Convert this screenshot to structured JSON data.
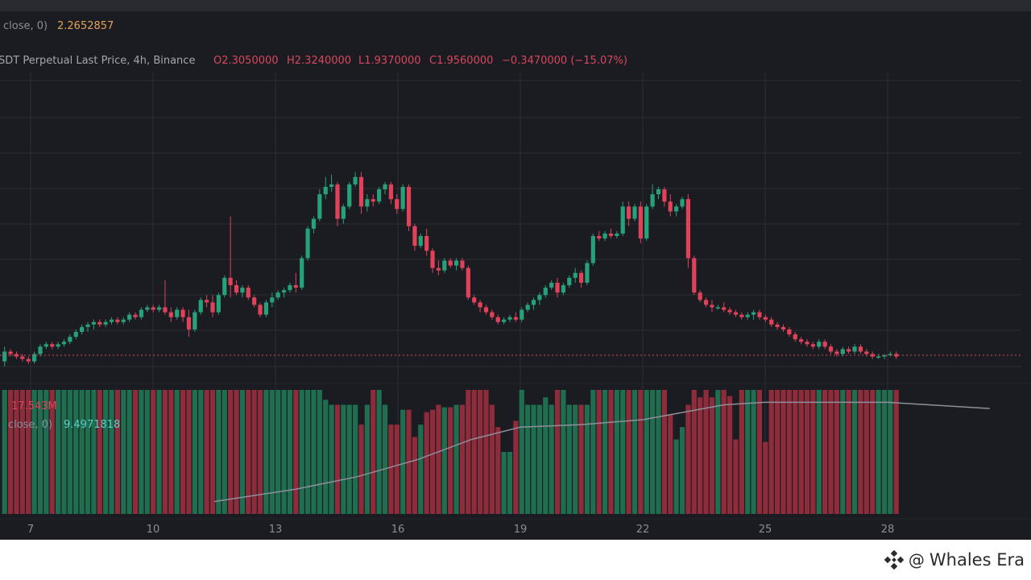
{
  "chart_data": [
    {
      "type": "candlestick",
      "ohlc_legend": {
        "symbol": "SDT Perpetual Last Price, 4h, Binance",
        "open": "O2.3050000",
        "high": "H2.3240000",
        "low": "L1.9370000",
        "close": "C1.9560000",
        "change": "−0.3470000 (−15.07%)"
      },
      "indicator_legend": {
        "label": "close, 0)",
        "value": "2.2652857"
      },
      "x_tick_labels": [
        "7",
        "10",
        "13",
        "16",
        "19",
        "22",
        "25",
        "28"
      ],
      "y_range": [
        1.85,
        3.2
      ],
      "candles": [
        [
          1.92,
          1.98,
          1.9,
          1.96
        ],
        [
          1.96,
          1.97,
          1.94,
          1.95
        ],
        [
          1.95,
          1.96,
          1.93,
          1.94
        ],
        [
          1.94,
          1.95,
          1.92,
          1.93
        ],
        [
          1.93,
          1.94,
          1.91,
          1.92
        ],
        [
          1.92,
          1.96,
          1.91,
          1.95
        ],
        [
          1.95,
          1.99,
          1.94,
          1.98
        ],
        [
          1.98,
          2.0,
          1.97,
          1.99
        ],
        [
          1.99,
          2.0,
          1.97,
          1.98
        ],
        [
          1.98,
          2.0,
          1.97,
          1.99
        ],
        [
          1.99,
          2.01,
          1.98,
          2.0
        ],
        [
          2.0,
          2.03,
          1.99,
          2.02
        ],
        [
          2.02,
          2.05,
          2.01,
          2.04
        ],
        [
          2.04,
          2.07,
          2.03,
          2.06
        ],
        [
          2.06,
          2.08,
          2.04,
          2.07
        ],
        [
          2.07,
          2.09,
          2.05,
          2.08
        ],
        [
          2.08,
          2.09,
          2.06,
          2.07
        ],
        [
          2.07,
          2.09,
          2.06,
          2.08
        ],
        [
          2.08,
          2.1,
          2.07,
          2.09
        ],
        [
          2.09,
          2.1,
          2.07,
          2.08
        ],
        [
          2.08,
          2.1,
          2.07,
          2.09
        ],
        [
          2.09,
          2.12,
          2.08,
          2.11
        ],
        [
          2.11,
          2.12,
          2.09,
          2.1
        ],
        [
          2.1,
          2.14,
          2.09,
          2.13
        ],
        [
          2.13,
          2.15,
          2.12,
          2.14
        ],
        [
          2.14,
          2.15,
          2.12,
          2.13
        ],
        [
          2.13,
          2.15,
          2.12,
          2.14
        ],
        [
          2.14,
          2.25,
          2.11,
          2.12
        ],
        [
          2.12,
          2.14,
          2.08,
          2.1
        ],
        [
          2.1,
          2.14,
          2.09,
          2.13
        ],
        [
          2.13,
          2.14,
          2.08,
          2.1
        ],
        [
          2.1,
          2.13,
          2.02,
          2.05
        ],
        [
          2.05,
          2.13,
          2.04,
          2.12
        ],
        [
          2.12,
          2.18,
          2.11,
          2.17
        ],
        [
          2.17,
          2.19,
          2.14,
          2.16
        ],
        [
          2.16,
          2.19,
          2.1,
          2.12
        ],
        [
          2.12,
          2.2,
          2.11,
          2.19
        ],
        [
          2.19,
          2.27,
          2.18,
          2.26
        ],
        [
          2.26,
          2.51,
          2.18,
          2.23
        ],
        [
          2.23,
          2.25,
          2.19,
          2.2
        ],
        [
          2.2,
          2.23,
          2.18,
          2.22
        ],
        [
          2.22,
          2.23,
          2.17,
          2.18
        ],
        [
          2.18,
          2.19,
          2.14,
          2.15
        ],
        [
          2.15,
          2.16,
          2.1,
          2.11
        ],
        [
          2.11,
          2.17,
          2.1,
          2.16
        ],
        [
          2.16,
          2.2,
          2.14,
          2.18
        ],
        [
          2.18,
          2.21,
          2.17,
          2.2
        ],
        [
          2.2,
          2.22,
          2.18,
          2.21
        ],
        [
          2.21,
          2.24,
          2.2,
          2.23
        ],
        [
          2.23,
          2.28,
          2.2,
          2.22
        ],
        [
          2.22,
          2.35,
          2.21,
          2.34
        ],
        [
          2.34,
          2.47,
          2.33,
          2.46
        ],
        [
          2.46,
          2.51,
          2.44,
          2.5
        ],
        [
          2.5,
          2.62,
          2.49,
          2.6
        ],
        [
          2.6,
          2.67,
          2.58,
          2.63
        ],
        [
          2.63,
          2.68,
          2.61,
          2.64
        ],
        [
          2.64,
          2.65,
          2.47,
          2.5
        ],
        [
          2.5,
          2.56,
          2.48,
          2.55
        ],
        [
          2.55,
          2.65,
          2.54,
          2.64
        ],
        [
          2.64,
          2.69,
          2.63,
          2.67
        ],
        [
          2.67,
          2.69,
          2.52,
          2.55
        ],
        [
          2.55,
          2.6,
          2.53,
          2.58
        ],
        [
          2.58,
          2.6,
          2.55,
          2.57
        ],
        [
          2.57,
          2.63,
          2.56,
          2.62
        ],
        [
          2.62,
          2.65,
          2.6,
          2.64
        ],
        [
          2.64,
          2.65,
          2.56,
          2.58
        ],
        [
          2.58,
          2.6,
          2.52,
          2.54
        ],
        [
          2.54,
          2.64,
          2.53,
          2.63
        ],
        [
          2.63,
          2.64,
          2.45,
          2.47
        ],
        [
          2.47,
          2.48,
          2.37,
          2.39
        ],
        [
          2.39,
          2.44,
          2.38,
          2.43
        ],
        [
          2.43,
          2.46,
          2.35,
          2.37
        ],
        [
          2.37,
          2.38,
          2.28,
          2.3
        ],
        [
          2.3,
          2.33,
          2.27,
          2.29
        ],
        [
          2.29,
          2.34,
          2.28,
          2.33
        ],
        [
          2.33,
          2.34,
          2.3,
          2.31
        ],
        [
          2.31,
          2.34,
          2.29,
          2.33
        ],
        [
          2.33,
          2.34,
          2.29,
          2.3
        ],
        [
          2.3,
          2.31,
          2.17,
          2.18
        ],
        [
          2.18,
          2.19,
          2.15,
          2.16
        ],
        [
          2.16,
          2.17,
          2.12,
          2.14
        ],
        [
          2.14,
          2.15,
          2.11,
          2.12
        ],
        [
          2.12,
          2.13,
          2.09,
          2.1
        ],
        [
          2.1,
          2.11,
          2.07,
          2.08
        ],
        [
          2.08,
          2.1,
          2.07,
          2.09
        ],
        [
          2.09,
          2.11,
          2.08,
          2.1
        ],
        [
          2.1,
          2.12,
          2.08,
          2.09
        ],
        [
          2.09,
          2.14,
          2.08,
          2.13
        ],
        [
          2.13,
          2.16,
          2.12,
          2.15
        ],
        [
          2.15,
          2.18,
          2.13,
          2.17
        ],
        [
          2.17,
          2.2,
          2.15,
          2.19
        ],
        [
          2.19,
          2.23,
          2.18,
          2.22
        ],
        [
          2.22,
          2.25,
          2.21,
          2.24
        ],
        [
          2.24,
          2.26,
          2.18,
          2.2
        ],
        [
          2.2,
          2.24,
          2.19,
          2.23
        ],
        [
          2.23,
          2.27,
          2.22,
          2.26
        ],
        [
          2.26,
          2.3,
          2.24,
          2.28
        ],
        [
          2.28,
          2.29,
          2.22,
          2.24
        ],
        [
          2.24,
          2.33,
          2.23,
          2.32
        ],
        [
          2.32,
          2.44,
          2.31,
          2.43
        ],
        [
          2.43,
          2.45,
          2.41,
          2.42
        ],
        [
          2.42,
          2.45,
          2.41,
          2.44
        ],
        [
          2.44,
          2.46,
          2.42,
          2.43
        ],
        [
          2.43,
          2.45,
          2.42,
          2.44
        ],
        [
          2.44,
          2.57,
          2.43,
          2.55
        ],
        [
          2.55,
          2.57,
          2.47,
          2.5
        ],
        [
          2.5,
          2.56,
          2.49,
          2.55
        ],
        [
          2.55,
          2.57,
          2.4,
          2.42
        ],
        [
          2.42,
          2.56,
          2.41,
          2.55
        ],
        [
          2.55,
          2.64,
          2.54,
          2.6
        ],
        [
          2.6,
          2.63,
          2.58,
          2.62
        ],
        [
          2.62,
          2.63,
          2.55,
          2.57
        ],
        [
          2.57,
          2.6,
          2.51,
          2.53
        ],
        [
          2.53,
          2.56,
          2.51,
          2.55
        ],
        [
          2.55,
          2.59,
          2.54,
          2.58
        ],
        [
          2.58,
          2.6,
          2.3,
          2.34
        ],
        [
          2.34,
          2.35,
          2.19,
          2.2
        ],
        [
          2.2,
          2.21,
          2.16,
          2.17
        ],
        [
          2.17,
          2.18,
          2.14,
          2.15
        ],
        [
          2.15,
          2.17,
          2.12,
          2.14
        ],
        [
          2.14,
          2.15,
          2.13,
          2.14
        ],
        [
          2.14,
          2.16,
          2.12,
          2.13
        ],
        [
          2.13,
          2.14,
          2.11,
          2.12
        ],
        [
          2.12,
          2.13,
          2.1,
          2.11
        ],
        [
          2.11,
          2.12,
          2.09,
          2.1
        ],
        [
          2.1,
          2.12,
          2.09,
          2.11
        ],
        [
          2.11,
          2.13,
          2.09,
          2.12
        ],
        [
          2.12,
          2.13,
          2.09,
          2.1
        ],
        [
          2.1,
          2.11,
          2.08,
          2.09
        ],
        [
          2.09,
          2.1,
          2.06,
          2.07
        ],
        [
          2.07,
          2.08,
          2.05,
          2.06
        ],
        [
          2.06,
          2.07,
          2.04,
          2.05
        ],
        [
          2.05,
          2.06,
          2.02,
          2.03
        ],
        [
          2.03,
          2.04,
          2.0,
          2.01
        ],
        [
          2.01,
          2.02,
          1.99,
          2.0
        ],
        [
          2.0,
          2.01,
          1.98,
          1.99
        ],
        [
          1.99,
          2.0,
          1.97,
          1.98
        ],
        [
          1.98,
          2.01,
          1.97,
          2.0
        ],
        [
          2.0,
          2.01,
          1.97,
          1.98
        ],
        [
          1.98,
          1.99,
          1.95,
          1.96
        ],
        [
          1.96,
          1.97,
          1.94,
          1.95
        ],
        [
          1.95,
          1.98,
          1.94,
          1.97
        ],
        [
          1.97,
          1.98,
          1.95,
          1.96
        ],
        [
          1.96,
          1.99,
          1.95,
          1.98
        ],
        [
          1.98,
          1.99,
          1.95,
          1.96
        ],
        [
          1.96,
          1.97,
          1.94,
          1.95
        ],
        [
          1.95,
          1.96,
          1.93,
          1.94
        ],
        [
          1.94,
          1.95,
          1.93,
          1.94
        ],
        [
          1.94,
          1.95,
          1.93,
          1.945
        ],
        [
          1.945,
          1.96,
          1.94,
          1.95
        ],
        [
          1.95,
          1.96,
          1.93,
          1.94
        ]
      ],
      "last_price": 1.945
    },
    {
      "type": "bar",
      "panel": "volume",
      "legend_volume_value": "17.543M",
      "legend_ma_label": "close, 0)",
      "legend_ma_value": "9.4971818",
      "y_range": [
        0,
        100
      ],
      "volume_pattern": [
        100,
        100,
        100,
        100,
        100,
        100,
        100,
        100,
        100,
        100,
        100,
        100,
        100,
        100,
        100,
        100,
        100,
        100,
        100,
        100,
        100,
        100,
        100,
        100,
        100,
        100,
        100,
        100,
        100,
        100,
        100,
        100,
        100,
        100,
        100,
        100,
        100,
        100,
        100,
        100,
        100,
        100,
        100,
        100,
        100,
        100,
        100,
        100,
        100,
        100,
        100,
        100,
        100,
        100,
        92,
        88,
        88,
        88,
        88,
        88,
        72,
        88,
        100,
        100,
        88,
        72,
        72,
        84,
        84,
        62,
        72,
        82,
        84,
        88,
        86,
        86,
        88,
        88,
        100,
        100,
        100,
        100,
        88,
        70,
        50,
        50,
        75,
        100,
        88,
        88,
        88,
        94,
        88,
        100,
        100,
        88,
        88,
        88,
        88,
        100,
        100,
        100,
        100,
        100,
        100,
        100,
        100,
        100,
        100,
        100,
        100,
        100,
        80,
        60,
        70,
        88,
        100,
        94,
        100,
        94,
        100,
        100,
        95,
        60,
        100,
        100,
        100,
        100,
        58,
        100,
        100,
        100,
        100,
        100,
        100,
        100,
        100,
        100,
        100,
        100,
        100,
        100,
        100,
        100,
        100,
        100,
        100,
        100,
        100,
        100,
        100,
        100,
        100,
        100,
        100,
        100,
        100,
        100,
        100,
        100,
        100
      ],
      "ma_line": [
        [
          11.5,
          10
        ],
        [
          13.5,
          20
        ],
        [
          15,
          30
        ],
        [
          16.5,
          44
        ],
        [
          17.8,
          60
        ],
        [
          19,
          70
        ],
        [
          20.5,
          72
        ],
        [
          22,
          76
        ],
        [
          23,
          82
        ],
        [
          24,
          88
        ],
        [
          25,
          90
        ],
        [
          26,
          90
        ],
        [
          27,
          90
        ],
        [
          28,
          90
        ],
        [
          29,
          88
        ],
        [
          30.5,
          85
        ]
      ]
    }
  ],
  "watermark": {
    "at_symbol": "@",
    "text": "Whales Era"
  },
  "colors": {
    "up": "#26a17a",
    "down": "#e0425a",
    "up_volume": "#1f6e50",
    "down_volume": "#8f2c3c",
    "grid": "#2c2e36",
    "text": "#8a8d99",
    "ma_line": "#8e8f99",
    "last_price_line": "#d8475b"
  }
}
